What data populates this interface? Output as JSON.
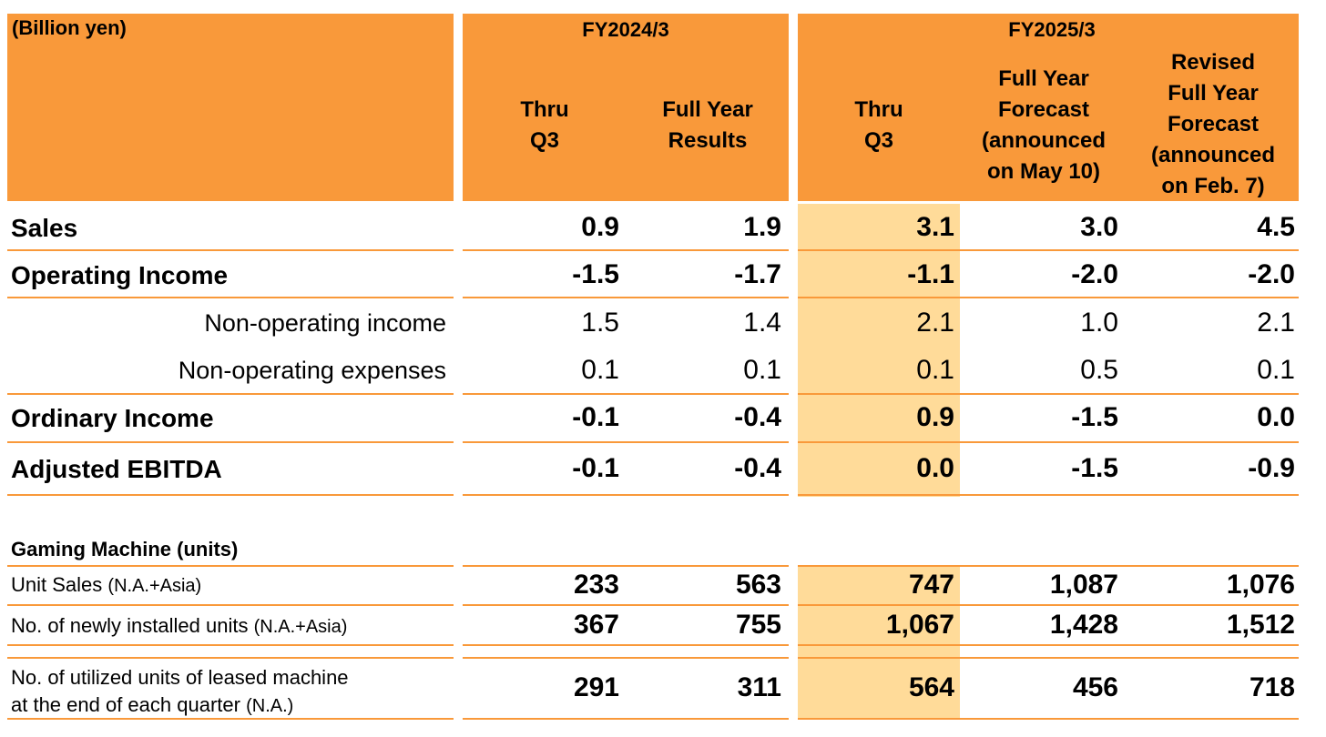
{
  "header": {
    "unit": "(Billion yen)",
    "fy2024": "FY2024/3",
    "fy2025": "FY2025/3",
    "col1": [
      "Thru",
      "Q3"
    ],
    "col2": [
      "Full Year",
      "Results"
    ],
    "col3": [
      "Thru",
      "Q3"
    ],
    "col4": [
      "Full Year",
      "Forecast",
      "(announced",
      "on May 10)"
    ],
    "col5": [
      "Revised",
      "Full Year",
      "Forecast",
      "(announced",
      "on Feb. 7)"
    ]
  },
  "financials": [
    {
      "label": "Sales",
      "bold": true,
      "values": [
        "0.9",
        "1.9",
        "3.1",
        "3.0",
        "4.5"
      ]
    },
    {
      "label": "Operating Income",
      "bold": true,
      "values": [
        "-1.5",
        "-1.7",
        "-1.1",
        "-2.0",
        "-2.0"
      ]
    },
    {
      "label": "Non-operating income",
      "bold": false,
      "values": [
        "1.5",
        "1.4",
        "2.1",
        "1.0",
        "2.1"
      ]
    },
    {
      "label": "Non-operating expenses",
      "bold": false,
      "values": [
        "0.1",
        "0.1",
        "0.1",
        "0.5",
        "0.1"
      ]
    },
    {
      "label": "Ordinary Income",
      "bold": true,
      "values": [
        "-0.1",
        "-0.4",
        "0.9",
        "-1.5",
        "0.0"
      ]
    },
    {
      "label": "Adjusted EBITDA",
      "bold": true,
      "values": [
        "-0.1",
        "-0.4",
        "0.0",
        "-1.5",
        "-0.9"
      ]
    }
  ],
  "gaming": {
    "title": "Gaming Machine (units)",
    "rows": [
      {
        "label": "Unit Sales",
        "note": "(N.A.+Asia)",
        "values": [
          "233",
          "563",
          "747",
          "1,087",
          "1,076"
        ]
      },
      {
        "label": "No. of newly installed units",
        "note": "(N.A.+Asia)",
        "values": [
          "367",
          "755",
          "1,067",
          "1,428",
          "1,512"
        ]
      },
      {
        "label": "No. of utilized units of leased machine",
        "label2": "at the end of each quarter",
        "note": "(N.A.)",
        "values": [
          "291",
          "311",
          "564",
          "456",
          "718"
        ]
      }
    ]
  },
  "colors": {
    "header": "#F9993A",
    "highlight": "#FFDB99",
    "rule": "#F9993A"
  }
}
